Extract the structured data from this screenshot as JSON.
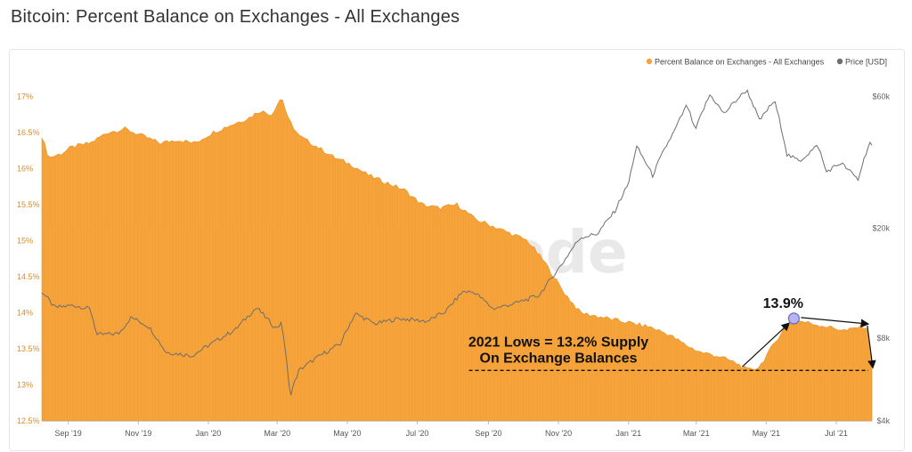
{
  "page_title": "Bitcoin: Percent Balance on Exchanges - All Exchanges",
  "watermark": "glassnode",
  "colors": {
    "balance": "#f5a33a",
    "price": "#6e6e6e",
    "left_axis_text": "#e08a1e",
    "right_axis_text": "#666666",
    "tick_text": "#555555"
  },
  "chart_data": {
    "type": "area",
    "title": "Bitcoin: Percent Balance on Exchanges - All Exchanges",
    "legend": [
      {
        "label": "Percent Balance on Exchanges - All Exchanges",
        "color": "#f5a33a"
      },
      {
        "label": "Price [USD]",
        "color": "#6e6e6e"
      }
    ],
    "legend_position": "top-right",
    "x_tick_labels": [
      "Sep '19",
      "Nov '19",
      "Jan '20",
      "Mar '20",
      "May '20",
      "Jul '20",
      "Sep '20",
      "Nov '20",
      "Jan '21",
      "Mar '21",
      "May '21",
      "Jul '21"
    ],
    "x_tick_dates": [
      "2019-09-01",
      "2019-11-01",
      "2020-01-01",
      "2020-03-01",
      "2020-05-01",
      "2020-07-01",
      "2020-09-01",
      "2020-11-01",
      "2021-01-01",
      "2021-03-01",
      "2021-05-01",
      "2021-07-01"
    ],
    "x_range": [
      "2019-08-09",
      "2021-08-01"
    ],
    "left_axis": {
      "unit": "%",
      "ylim": [
        12.5,
        17.25
      ],
      "ticks": [
        12.5,
        13,
        13.5,
        14,
        14.5,
        15,
        15.5,
        16,
        16.5,
        17
      ],
      "tick_labels": [
        "12.5%",
        "13%",
        "13.5%",
        "14%",
        "14.5%",
        "15%",
        "15.5%",
        "16%",
        "16.5%",
        "17%"
      ]
    },
    "right_axis": {
      "scale": "log",
      "ylim": [
        4000,
        70000
      ],
      "ticks": [
        4000,
        8000,
        20000,
        60000
      ],
      "tick_labels": [
        "$4k",
        "$8k",
        "$20k",
        "$60k"
      ]
    },
    "series": [
      {
        "name": "Percent Balance on Exchanges - All Exchanges",
        "axis": "left",
        "points": [
          [
            "2019-08-09",
            16.45
          ],
          [
            "2019-08-15",
            16.15
          ],
          [
            "2019-08-25",
            16.2
          ],
          [
            "2019-09-05",
            16.3
          ],
          [
            "2019-09-20",
            16.35
          ],
          [
            "2019-10-05",
            16.5
          ],
          [
            "2019-10-20",
            16.55
          ],
          [
            "2019-11-05",
            16.45
          ],
          [
            "2019-11-20",
            16.35
          ],
          [
            "2019-12-05",
            16.4
          ],
          [
            "2019-12-20",
            16.35
          ],
          [
            "2020-01-05",
            16.5
          ],
          [
            "2020-01-20",
            16.6
          ],
          [
            "2020-02-05",
            16.7
          ],
          [
            "2020-02-15",
            16.8
          ],
          [
            "2020-02-25",
            16.75
          ],
          [
            "2020-03-05",
            17.0
          ],
          [
            "2020-03-10",
            16.7
          ],
          [
            "2020-03-20",
            16.45
          ],
          [
            "2020-04-05",
            16.3
          ],
          [
            "2020-04-20",
            16.15
          ],
          [
            "2020-05-05",
            16.05
          ],
          [
            "2020-05-20",
            15.9
          ],
          [
            "2020-06-05",
            15.8
          ],
          [
            "2020-06-20",
            15.7
          ],
          [
            "2020-07-05",
            15.5
          ],
          [
            "2020-07-20",
            15.45
          ],
          [
            "2020-08-05",
            15.5
          ],
          [
            "2020-08-20",
            15.3
          ],
          [
            "2020-09-05",
            15.2
          ],
          [
            "2020-09-20",
            15.1
          ],
          [
            "2020-10-05",
            15.0
          ],
          [
            "2020-10-20",
            14.7
          ],
          [
            "2020-11-05",
            14.3
          ],
          [
            "2020-11-20",
            14.0
          ],
          [
            "2020-12-05",
            13.95
          ],
          [
            "2020-12-20",
            13.9
          ],
          [
            "2021-01-05",
            13.85
          ],
          [
            "2021-01-20",
            13.8
          ],
          [
            "2021-02-05",
            13.7
          ],
          [
            "2021-02-20",
            13.55
          ],
          [
            "2021-03-05",
            13.45
          ],
          [
            "2021-03-20",
            13.4
          ],
          [
            "2021-04-05",
            13.3
          ],
          [
            "2021-04-15",
            13.2
          ],
          [
            "2021-04-25",
            13.25
          ],
          [
            "2021-05-05",
            13.5
          ],
          [
            "2021-05-15",
            13.75
          ],
          [
            "2021-05-25",
            13.9
          ],
          [
            "2021-06-10",
            13.85
          ],
          [
            "2021-06-25",
            13.8
          ],
          [
            "2021-07-10",
            13.75
          ],
          [
            "2021-07-20",
            13.8
          ],
          [
            "2021-07-28",
            13.8
          ],
          [
            "2021-08-01",
            13.3
          ]
        ]
      },
      {
        "name": "Price [USD]",
        "axis": "right",
        "points": [
          [
            "2019-08-09",
            11800
          ],
          [
            "2019-08-20",
            10300
          ],
          [
            "2019-09-05",
            10500
          ],
          [
            "2019-09-20",
            10200
          ],
          [
            "2019-09-26",
            8200
          ],
          [
            "2019-10-15",
            8300
          ],
          [
            "2019-10-26",
            9500
          ],
          [
            "2019-11-10",
            8800
          ],
          [
            "2019-11-25",
            7100
          ],
          [
            "2019-12-18",
            6900
          ],
          [
            "2020-01-10",
            7900
          ],
          [
            "2020-01-25",
            8600
          ],
          [
            "2020-02-12",
            10300
          ],
          [
            "2020-02-28",
            8700
          ],
          [
            "2020-03-05",
            9000
          ],
          [
            "2020-03-12",
            4900
          ],
          [
            "2020-03-20",
            6100
          ],
          [
            "2020-04-05",
            6800
          ],
          [
            "2020-04-25",
            7600
          ],
          [
            "2020-05-08",
            9800
          ],
          [
            "2020-05-25",
            9000
          ],
          [
            "2020-06-15",
            9400
          ],
          [
            "2020-07-10",
            9200
          ],
          [
            "2020-07-26",
            10000
          ],
          [
            "2020-08-10",
            11800
          ],
          [
            "2020-08-20",
            11700
          ],
          [
            "2020-09-05",
            10200
          ],
          [
            "2020-09-25",
            10700
          ],
          [
            "2020-10-15",
            11400
          ],
          [
            "2020-10-25",
            13000
          ],
          [
            "2020-11-05",
            15000
          ],
          [
            "2020-11-20",
            18500
          ],
          [
            "2020-12-05",
            19100
          ],
          [
            "2020-12-20",
            23000
          ],
          [
            "2021-01-01",
            29000
          ],
          [
            "2021-01-08",
            39500
          ],
          [
            "2021-01-22",
            31000
          ],
          [
            "2021-02-10",
            45000
          ],
          [
            "2021-02-21",
            56000
          ],
          [
            "2021-02-28",
            45000
          ],
          [
            "2021-03-13",
            61000
          ],
          [
            "2021-03-25",
            52000
          ],
          [
            "2021-04-14",
            63500
          ],
          [
            "2021-04-25",
            49000
          ],
          [
            "2021-05-08",
            58000
          ],
          [
            "2021-05-19",
            37000
          ],
          [
            "2021-05-30",
            35000
          ],
          [
            "2021-06-15",
            40000
          ],
          [
            "2021-06-22",
            32000
          ],
          [
            "2021-07-05",
            34500
          ],
          [
            "2021-07-20",
            30000
          ],
          [
            "2021-07-30",
            41000
          ],
          [
            "2021-08-01",
            39500
          ]
        ]
      }
    ],
    "annotations": {
      "peak_label": "13.9%",
      "peak_point": [
        "2021-05-25",
        13.92
      ],
      "next_point": [
        "2021-07-28",
        13.82
      ],
      "low_line_value": 13.2,
      "low_line_range": [
        "2020-08-15",
        "2021-08-01"
      ],
      "low_text_line1": "2021 Lows = 13.2% Supply",
      "low_text_line2": "On Exchange Balances"
    }
  }
}
